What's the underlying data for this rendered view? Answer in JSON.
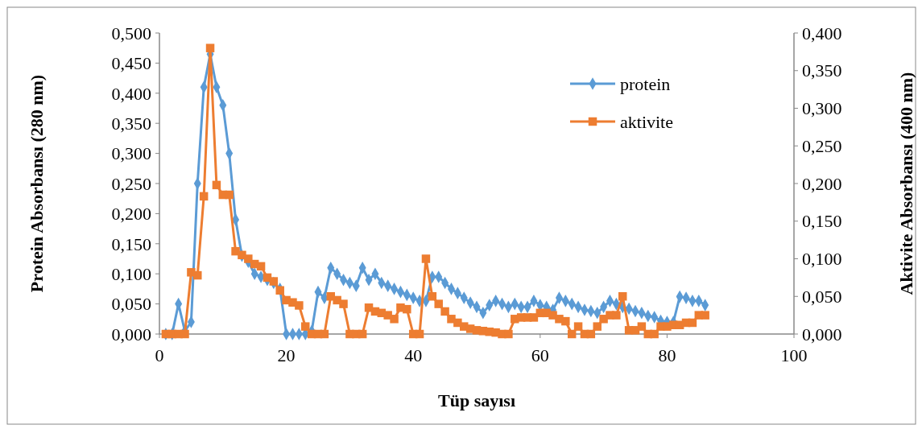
{
  "chart_data": {
    "type": "line",
    "xlabel": "Tüp sayısı",
    "ylabel": "Protein Absorbansı (280 nm)",
    "y2label": "Aktivite Absorbansı (400  nm)",
    "xlim": [
      0,
      100
    ],
    "xticks": [
      0,
      20,
      40,
      60,
      80,
      100
    ],
    "ylim": [
      0,
      0.5
    ],
    "yticks": [
      {
        "value": 0,
        "label": "0,000"
      },
      {
        "value": 0.05,
        "label": "0,050"
      },
      {
        "value": 0.1,
        "label": "0,100"
      },
      {
        "value": 0.15,
        "label": "0,150"
      },
      {
        "value": 0.2,
        "label": "0,200"
      },
      {
        "value": 0.25,
        "label": "0,250"
      },
      {
        "value": 0.3,
        "label": "0,300"
      },
      {
        "value": 0.35,
        "label": "0,350"
      },
      {
        "value": 0.4,
        "label": "0,400"
      },
      {
        "value": 0.45,
        "label": "0,450"
      },
      {
        "value": 0.5,
        "label": "0,500"
      }
    ],
    "y2lim": [
      0,
      0.4
    ],
    "y2ticks": [
      {
        "value": 0,
        "label": "0,000"
      },
      {
        "value": 0.05,
        "label": "0,050"
      },
      {
        "value": 0.1,
        "label": "0,100"
      },
      {
        "value": 0.15,
        "label": "0,150"
      },
      {
        "value": 0.2,
        "label": "0,200"
      },
      {
        "value": 0.25,
        "label": "0,250"
      },
      {
        "value": 0.3,
        "label": "0,300"
      },
      {
        "value": 0.35,
        "label": "0,350"
      },
      {
        "value": 0.4,
        "label": "0,400"
      }
    ],
    "x": [
      1,
      2,
      3,
      4,
      5,
      6,
      7,
      8,
      9,
      10,
      11,
      12,
      13,
      14,
      15,
      16,
      17,
      18,
      19,
      20,
      21,
      22,
      23,
      24,
      25,
      26,
      27,
      28,
      29,
      30,
      31,
      32,
      33,
      34,
      35,
      36,
      37,
      38,
      39,
      40,
      41,
      42,
      43,
      44,
      45,
      46,
      47,
      48,
      49,
      50,
      51,
      52,
      53,
      54,
      55,
      56,
      57,
      58,
      59,
      60,
      61,
      62,
      63,
      64,
      65,
      66,
      67,
      68,
      69,
      70,
      71,
      72,
      73,
      74,
      75,
      76,
      77,
      78,
      79,
      80,
      81,
      82,
      83,
      84,
      85,
      86
    ],
    "grid": false,
    "legend": "top right",
    "series": [
      {
        "name": "protein",
        "color": "#5b9bd5",
        "marker": "diamond",
        "values": [
          0,
          0,
          0.05,
          0.005,
          0.02,
          0.25,
          0.41,
          0.465,
          0.41,
          0.38,
          0.3,
          0.19,
          0.13,
          0.12,
          0.1,
          0.095,
          0.09,
          0.085,
          0.075,
          0,
          0,
          0,
          0,
          0.005,
          0.07,
          0.06,
          0.11,
          0.1,
          0.09,
          0.085,
          0.08,
          0.11,
          0.09,
          0.1,
          0.085,
          0.08,
          0.075,
          0.07,
          0.065,
          0.06,
          0.055,
          0.055,
          0.095,
          0.095,
          0.085,
          0.075,
          0.068,
          0.06,
          0.052,
          0.045,
          0.035,
          0.048,
          0.055,
          0.05,
          0.045,
          0.05,
          0.045,
          0.045,
          0.055,
          0.048,
          0.045,
          0.04,
          0.06,
          0.055,
          0.05,
          0.045,
          0.04,
          0.038,
          0.035,
          0.045,
          0.055,
          0.05,
          0.045,
          0.042,
          0.038,
          0.035,
          0.03,
          0.028,
          0.022,
          0.02,
          0.02,
          0.062,
          0.06,
          0.055,
          0.055,
          0.048
        ]
      },
      {
        "name": "aktivite",
        "color": "#ed7d31",
        "marker": "square",
        "axis": "y2",
        "values": [
          0,
          0,
          0,
          0,
          0.082,
          0.078,
          0.183,
          0.38,
          0.198,
          0.185,
          0.185,
          0.11,
          0.105,
          0.1,
          0.093,
          0.09,
          0.075,
          0.07,
          0.058,
          0.045,
          0.042,
          0.038,
          0.01,
          0,
          0,
          0,
          0.05,
          0.045,
          0.04,
          0,
          0,
          0,
          0.035,
          0.03,
          0.028,
          0.025,
          0.02,
          0.035,
          0.033,
          0,
          0,
          0.1,
          0.05,
          0.04,
          0.03,
          0.02,
          0.015,
          0.01,
          0.007,
          0.005,
          0.004,
          0.003,
          0.002,
          0,
          0,
          0.02,
          0.022,
          0.022,
          0.022,
          0.028,
          0.028,
          0.025,
          0.02,
          0.017,
          0,
          0.01,
          0,
          0,
          0.01,
          0.02,
          0.025,
          0.025,
          0.05,
          0.005,
          0.005,
          0.01,
          0,
          0,
          0.01,
          0.01,
          0.012,
          0.012,
          0.015,
          0.015,
          0.025,
          0.025
        ]
      }
    ]
  }
}
